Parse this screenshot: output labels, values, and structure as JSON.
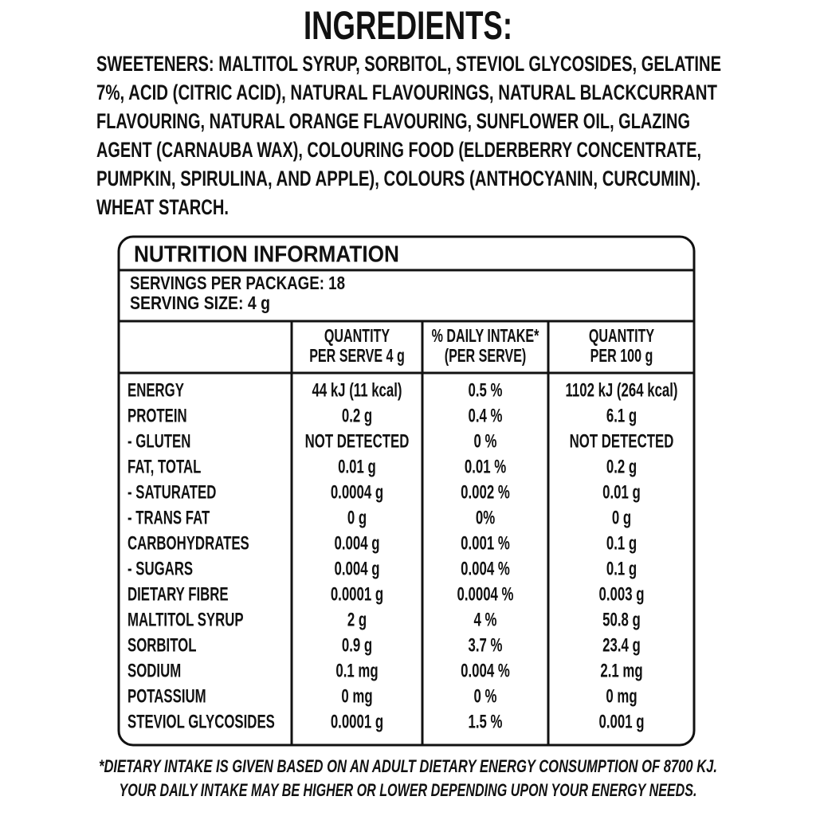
{
  "ingredients": {
    "title": "INGREDIENTS:",
    "lines": [
      "SWEETENERS: MALTITOL SYRUP, SORBITOL, STEVIOL GLYCOSIDES, GELATINE",
      "7%, ACID (CITRIC ACID), NATURAL FLAVOURINGS, NATURAL BLACKCURRANT",
      "FLAVOURING, NATURAL ORANGE FLAVOURING, SUNFLOWER OIL, GLAZING",
      "AGENT (CARNAUBA WAX), COLOURING FOOD (ELDERBERRY CONCENTRATE,",
      "PUMPKIN, SPIRULINA, AND APPLE), COLOURS (ANTHOCYANIN, CURCUMIN).",
      "WHEAT STARCH."
    ]
  },
  "nutrition": {
    "title": "NUTRITION INFORMATION",
    "servings_per_package": "SERVINGS PER PACKAGE: 18",
    "serving_size": "SERVING SIZE: 4 g",
    "columns": [
      [
        "QUANTITY",
        "PER SERVE 4 g"
      ],
      [
        "% DAILY INTAKE*",
        "(PER SERVE)"
      ],
      [
        "QUANTITY",
        "PER 100 g"
      ]
    ],
    "rows": [
      [
        "ENERGY",
        "44 kJ (11 kcal)",
        "0.5 %",
        "1102 kJ (264 kcal)"
      ],
      [
        "PROTEIN",
        "0.2 g",
        "0.4 %",
        "6.1 g"
      ],
      [
        "- GLUTEN",
        "NOT DETECTED",
        "0 %",
        "NOT DETECTED"
      ],
      [
        "FAT, TOTAL",
        "0.01 g",
        "0.01 %",
        "0.2 g"
      ],
      [
        "- SATURATED",
        "0.0004 g",
        "0.002 %",
        "0.01 g"
      ],
      [
        "- TRANS FAT",
        "0 g",
        "0%",
        "0 g"
      ],
      [
        "CARBOHYDRATES",
        "0.004 g",
        "0.001 %",
        "0.1 g"
      ],
      [
        "- SUGARS",
        "0.004 g",
        "0.004 %",
        "0.1 g"
      ],
      [
        "DIETARY FIBRE",
        "0.0001 g",
        "0.0004 %",
        "0.003 g"
      ],
      [
        "MALTITOL SYRUP",
        "2 g",
        "4 %",
        "50.8 g"
      ],
      [
        "SORBITOL",
        "0.9 g",
        "3.7 %",
        "23.4 g"
      ],
      [
        "SODIUM",
        "0.1 mg",
        "0.004 %",
        "2.1 mg"
      ],
      [
        "POTASSIUM",
        "0 mg",
        "0 %",
        "0 mg"
      ],
      [
        "STEVIOL GLYCOSIDES",
        "0.0001 g",
        "1.5 %",
        "0.001 g"
      ]
    ]
  },
  "footnote": [
    "*DIETARY INTAKE IS GIVEN BASED ON AN ADULT DIETARY ENERGY CONSUMPTION OF 8700 KJ.",
    "YOUR DAILY INTAKE MAY BE HIGHER OR LOWER DEPENDING UPON YOUR ENERGY NEEDS."
  ]
}
